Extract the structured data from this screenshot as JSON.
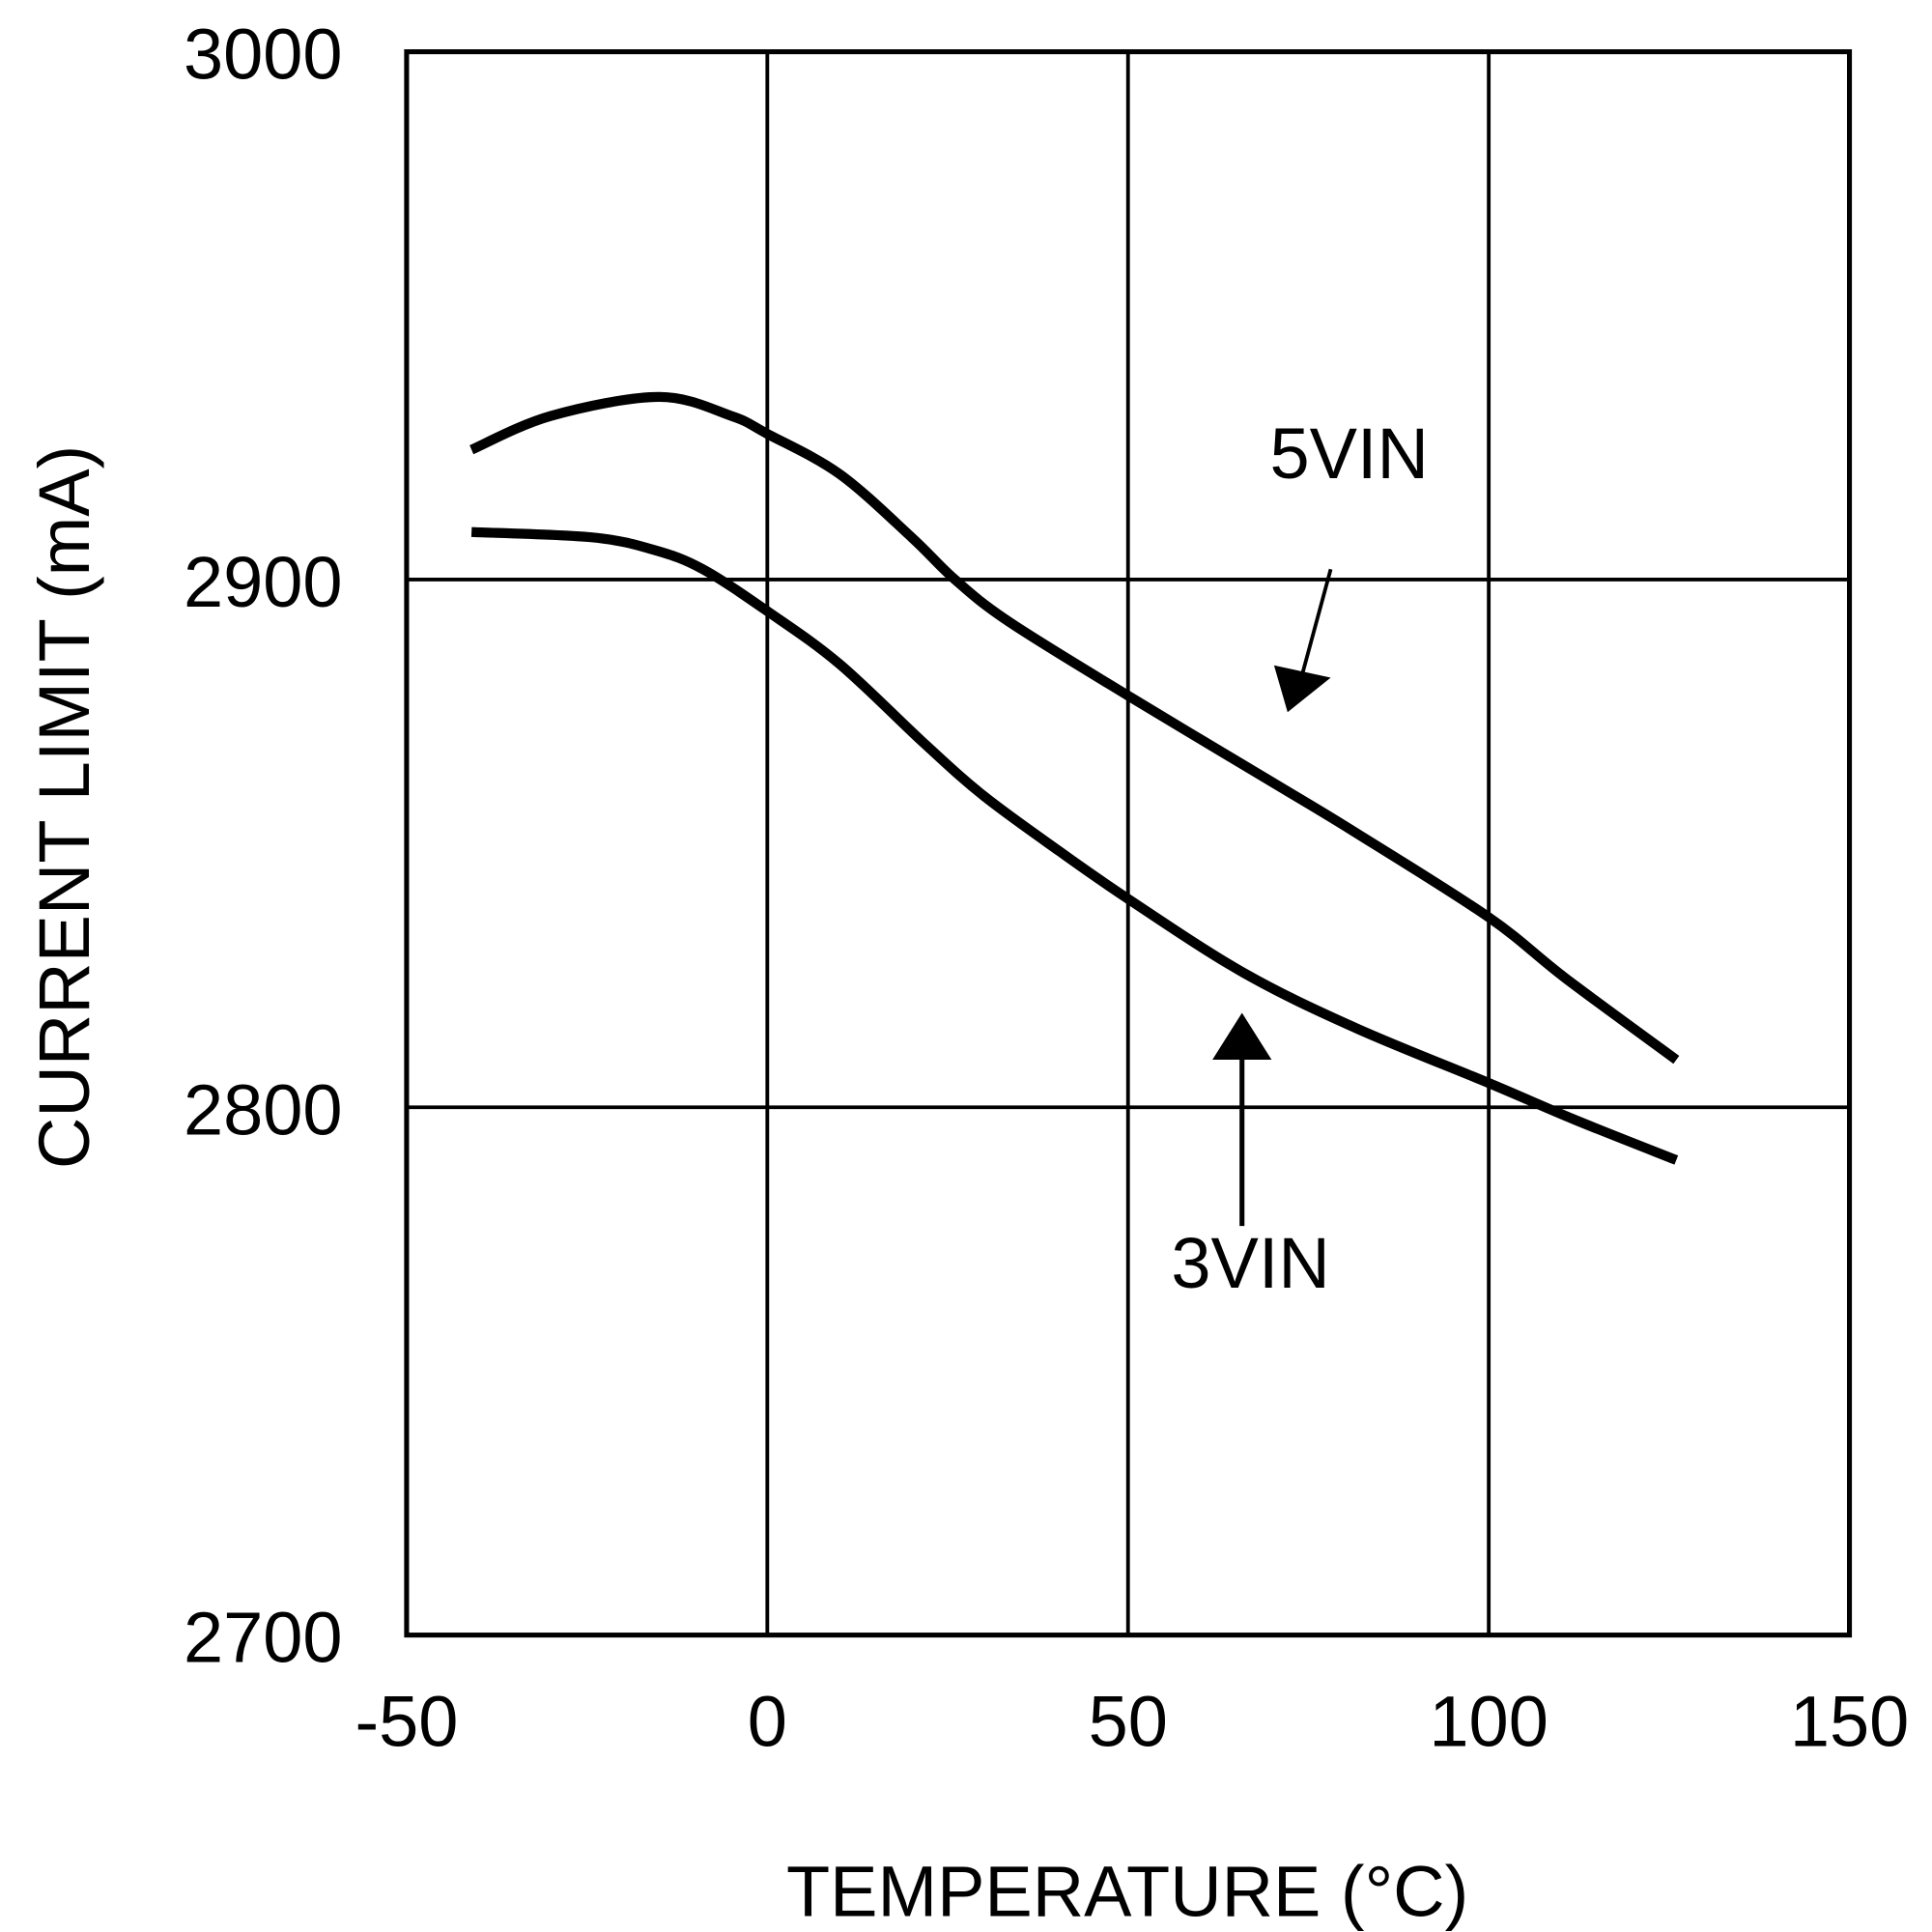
{
  "chart_data": {
    "type": "line",
    "title": "",
    "xlabel": "TEMPERATURE (°C)",
    "ylabel": "CURRENT LIMIT (mA)",
    "xlim": [
      -50,
      150
    ],
    "ylim": [
      2700,
      3000
    ],
    "xticks": [
      "-50",
      "0",
      "50",
      "100",
      "150"
    ],
    "yticks": [
      "3000",
      "2900",
      "2800",
      "2700"
    ],
    "grid": true,
    "line_color": "#000000",
    "series": [
      {
        "name": "5VIN",
        "x": [
          -41,
          -30,
          -15,
          -5,
          0,
          10,
          20,
          26,
          33.5,
          50,
          69.5,
          81.6,
          100,
          110.6,
          126
        ],
        "y": [
          2924.6,
          2931,
          2934.6,
          2931,
          2927.6,
          2920,
          2908,
          2900,
          2892,
          2878,
          2862,
          2852,
          2836,
          2824.5,
          2809
        ]
      },
      {
        "name": "3VIN",
        "x": [
          -41,
          -24.4,
          -15.7,
          -9,
          0,
          10,
          21.7,
          30,
          40.5,
          50,
          66,
          81.6,
          100,
          112,
          126
        ],
        "y": [
          2909,
          2908,
          2905.6,
          2902,
          2894,
          2884,
          2869,
          2859,
          2848.5,
          2839.5,
          2825.5,
          2815,
          2804.6,
          2797.6,
          2790
        ]
      }
    ],
    "annotations": [
      "5VIN",
      "3VIN"
    ]
  }
}
